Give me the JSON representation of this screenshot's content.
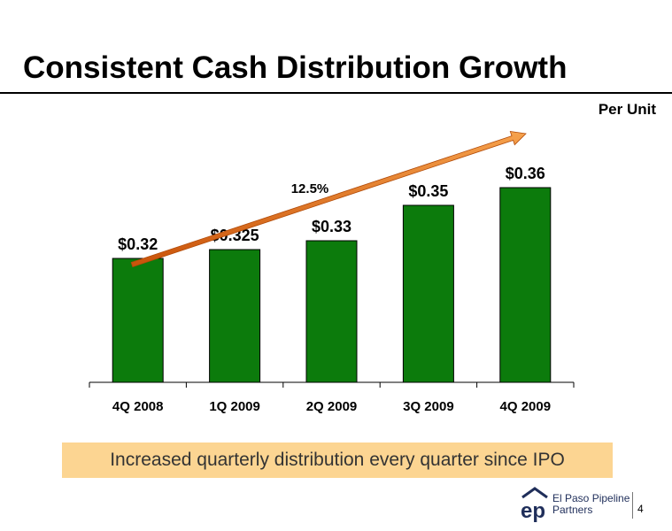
{
  "slide": {
    "title": "Consistent Cash Distribution Growth",
    "unit_label": "Per Unit",
    "banner": "Increased quarterly distribution every quarter since IPO",
    "logo": {
      "mark": "ep",
      "line1": "El Paso Pipeline",
      "line2": "Partners"
    },
    "page_number": "4"
  },
  "chart_data": {
    "type": "bar",
    "categories": [
      "4Q 2008",
      "1Q 2009",
      "2Q 2009",
      "3Q 2009",
      "4Q 2009"
    ],
    "values": [
      0.32,
      0.325,
      0.33,
      0.35,
      0.36
    ],
    "data_labels": [
      "$0.32",
      "$0.325",
      "$0.33",
      "$0.35",
      "$0.36"
    ],
    "bar_color": "#0c7b0c",
    "arrow_color": "#e8711b",
    "annotation": "12.5%",
    "ylim": [
      0.25,
      0.365
    ],
    "grid": false,
    "legend": "none"
  }
}
